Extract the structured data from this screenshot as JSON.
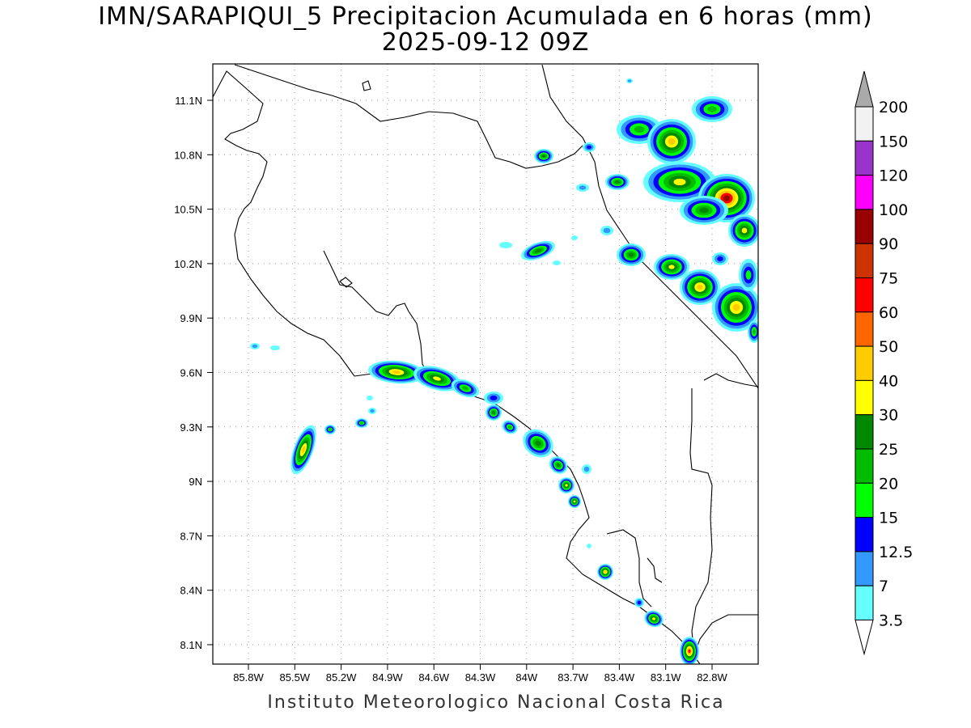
{
  "title": {
    "line1": "IMN/SARAPIQUI_5 Precipitacion Acumulada en 6 horas (mm)",
    "line2": "2025-09-12 09Z"
  },
  "footer": "Instituto Meteorologico Nacional Costa Rica",
  "axes": {
    "lon_labels": [
      "85.8W",
      "85.5W",
      "85.2W",
      "84.9W",
      "84.6W",
      "84.3W",
      "84W",
      "83.7W",
      "83.4W",
      "83.1W",
      "82.8W"
    ],
    "lat_labels": [
      "11.1N",
      "10.8N",
      "10.5N",
      "10.2N",
      "9.9N",
      "9.6N",
      "9.3N",
      "9N",
      "8.7N",
      "8.4N",
      "8.1N"
    ]
  },
  "colorbar": {
    "labels": [
      "200",
      "150",
      "120",
      "100",
      "90",
      "75",
      "60",
      "50",
      "40",
      "30",
      "25",
      "20",
      "15",
      "12.5",
      "7",
      "3.5"
    ],
    "colors": [
      "#f2f2f2",
      "#9933cc",
      "#ff00ff",
      "#990000",
      "#cc3300",
      "#ff0000",
      "#ff6600",
      "#ffcc00",
      "#ffff00",
      "#008800",
      "#00bb00",
      "#00ff00",
      "#0000ff",
      "#3399ff",
      "#66ffff"
    ],
    "top_arrow_color": "#aaaaaa",
    "bottom_arrow_color": "#ffffff"
  }
}
